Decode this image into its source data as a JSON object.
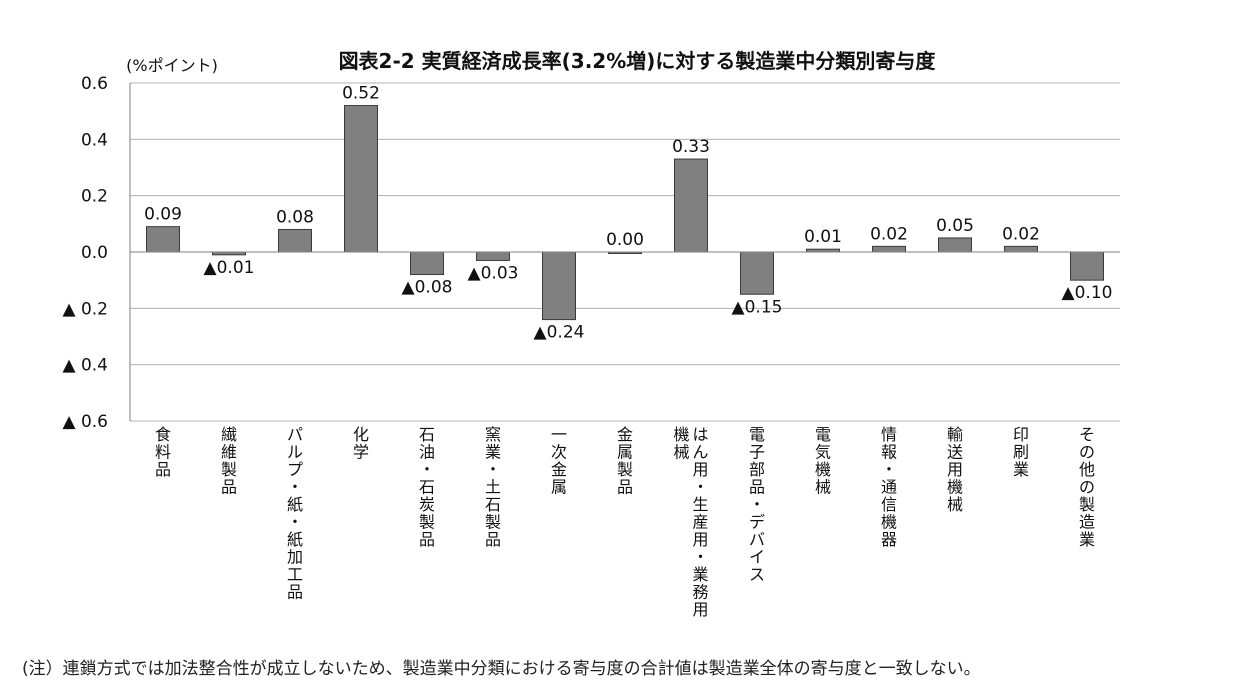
{
  "chart_data": {
    "type": "bar",
    "title": "図表2-2 実質経済成長率(3.2%増)に対する製造業中分類別寄与度",
    "ylabel": "(%ポイント)",
    "xlabel": "",
    "ylim": [
      -0.6,
      0.6
    ],
    "yticks": [
      0.6,
      0.4,
      0.2,
      0.0,
      -0.2,
      -0.4,
      -0.6
    ],
    "ytick_labels": [
      "0.6",
      "0.4",
      "0.2",
      "0.0",
      "▲ 0.2",
      "▲ 0.4",
      "▲ 0.6"
    ],
    "grid": true,
    "legend": "none",
    "bar_color": "#808080",
    "categories": [
      "食料品",
      "繊維製品",
      "パルプ・紙・紙加工品",
      "化学",
      "石油・石炭製品",
      "窯業・土石製品",
      "一次金属",
      "金属製品",
      "はん用・生産用・業務用機械",
      "電子部品・デバイス",
      "電気機械",
      "情報・通信機器",
      "輸送用機械",
      "印刷業",
      "その他の製造業"
    ],
    "values": [
      0.09,
      -0.01,
      0.08,
      0.52,
      -0.08,
      -0.03,
      -0.24,
      0.0,
      0.33,
      -0.15,
      0.01,
      0.02,
      0.05,
      0.02,
      -0.1
    ],
    "data_labels": [
      "0.09",
      "▲0.01",
      "0.08",
      "0.52",
      "▲0.08",
      "▲0.03",
      "▲0.24",
      "0.00",
      "0.33",
      "▲0.15",
      "0.01",
      "0.02",
      "0.05",
      "0.02",
      "▲0.10"
    ]
  },
  "note": "(注）連鎖方式では加法整合性が成立しないため、製造業中分類における寄与度の合計値は製造業全体の寄与度と一致しない。"
}
